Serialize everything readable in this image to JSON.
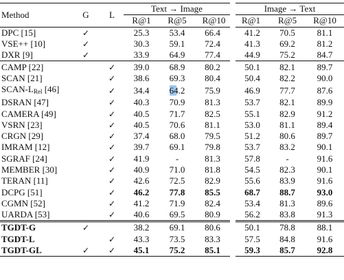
{
  "header": {
    "method": "Method",
    "g": "G",
    "l": "L",
    "text_to_image": "Text → Image",
    "image_to_text": "Image → Text",
    "metrics": [
      "R@1",
      "R@5",
      "R@10",
      "R@1",
      "R@5",
      "R@10"
    ]
  },
  "groups": [
    {
      "rows": [
        {
          "method": "DPC [15]",
          "g": "✓",
          "l": "",
          "vals": [
            "25.3",
            "53.4",
            "66.4",
            "41.2",
            "70.5",
            "81.1"
          ]
        },
        {
          "method": "VSE++ [10]",
          "g": "✓",
          "l": "",
          "vals": [
            "30.3",
            "59.1",
            "72.4",
            "41.3",
            "69.2",
            "81.2"
          ]
        },
        {
          "method": "DXR [9]",
          "g": "✓",
          "l": "",
          "vals": [
            "33.9",
            "64.9",
            "77.4",
            "44.9",
            "75.2",
            "84.7"
          ]
        }
      ]
    },
    {
      "rows": [
        {
          "method": "CAMP [22]",
          "g": "",
          "l": "✓",
          "vals": [
            "39.0",
            "68.9",
            "80.2",
            "50.1",
            "82.1",
            "89.7"
          ]
        },
        {
          "method": "SCAN [21]",
          "g": "",
          "l": "✓",
          "vals": [
            "38.6",
            "69.3",
            "80.4",
            "50.4",
            "82.2",
            "90.0"
          ]
        },
        {
          "method": "SCAN-L",
          "method_sub": "Rel",
          "method_suffix": " [46]",
          "g": "",
          "l": "✓",
          "vals": [
            "34.4",
            "64.2",
            "75.9",
            "46.9",
            "77.7",
            "87.6"
          ],
          "highlight": [
            1
          ]
        },
        {
          "method": "DSRAN [47]",
          "g": "",
          "l": "✓",
          "vals": [
            "40.3",
            "70.9",
            "81.3",
            "53.7",
            "82.1",
            "89.9"
          ]
        },
        {
          "method": "CAMERA [49]",
          "g": "",
          "l": "✓",
          "vals": [
            "40.5",
            "71.7",
            "82.5",
            "55.1",
            "82.9",
            "91.2"
          ]
        },
        {
          "method": "VSRN [23]",
          "g": "",
          "l": "✓",
          "vals": [
            "40.5",
            "70.6",
            "81.1",
            "53.0",
            "81.1",
            "89.4"
          ]
        },
        {
          "method": "CRGN [29]",
          "g": "",
          "l": "✓",
          "vals": [
            "37.4",
            "68.0",
            "79.5",
            "51.2",
            "80.6",
            "89.7"
          ]
        },
        {
          "method": "IMRAM [12]",
          "g": "",
          "l": "✓",
          "vals": [
            "39.7",
            "69.1",
            "79.8",
            "53.7",
            "83.2",
            "90.1"
          ]
        },
        {
          "method": "SGRAF [24]",
          "g": "",
          "l": "✓",
          "vals": [
            "41.9",
            "-",
            "81.3",
            "57.8",
            "-",
            "91.6"
          ]
        },
        {
          "method": "MEMBER [30]",
          "g": "",
          "l": "✓",
          "vals": [
            "40.9",
            "71.0",
            "81.8",
            "54.5",
            "82.3",
            "90.1"
          ]
        },
        {
          "method": "TERAN [11]",
          "g": "",
          "l": "✓",
          "vals": [
            "42.6",
            "72.5",
            "82.9",
            "55.6",
            "83.9",
            "91.6"
          ]
        },
        {
          "method": "DCPG [51]",
          "g": "",
          "l": "✓",
          "vals": [
            "46.2",
            "77.8",
            "85.5",
            "68.7",
            "88.7",
            "93.0"
          ],
          "bold_vals": [
            0,
            1,
            2,
            3,
            4,
            5
          ]
        },
        {
          "method": "CGMN [52]",
          "g": "",
          "l": "✓",
          "vals": [
            "41.2",
            "71.9",
            "82.4",
            "53.4",
            "81.3",
            "89.6"
          ]
        },
        {
          "method": "UARDA [53]",
          "g": "",
          "l": "✓",
          "vals": [
            "40.6",
            "69.5",
            "80.9",
            "56.2",
            "83.8",
            "91.3"
          ]
        }
      ]
    },
    {
      "rows": [
        {
          "method": "TGDT-G",
          "bold_method": true,
          "g": "✓",
          "l": "",
          "vals": [
            "38.2",
            "69.1",
            "80.6",
            "50.1",
            "78.8",
            "88.1"
          ]
        },
        {
          "method": "TGDT-L",
          "bold_method": true,
          "g": "",
          "l": "✓",
          "vals": [
            "43.3",
            "73.5",
            "83.3",
            "57.5",
            "84.8",
            "91.6"
          ]
        },
        {
          "method": "TGDT-GL",
          "bold_method": true,
          "g": "✓",
          "l": "✓",
          "vals": [
            "45.1",
            "75.2",
            "85.1",
            "59.3",
            "85.7",
            "92.8"
          ],
          "bold_vals": [
            0,
            1,
            2,
            3,
            4,
            5
          ]
        }
      ]
    }
  ]
}
